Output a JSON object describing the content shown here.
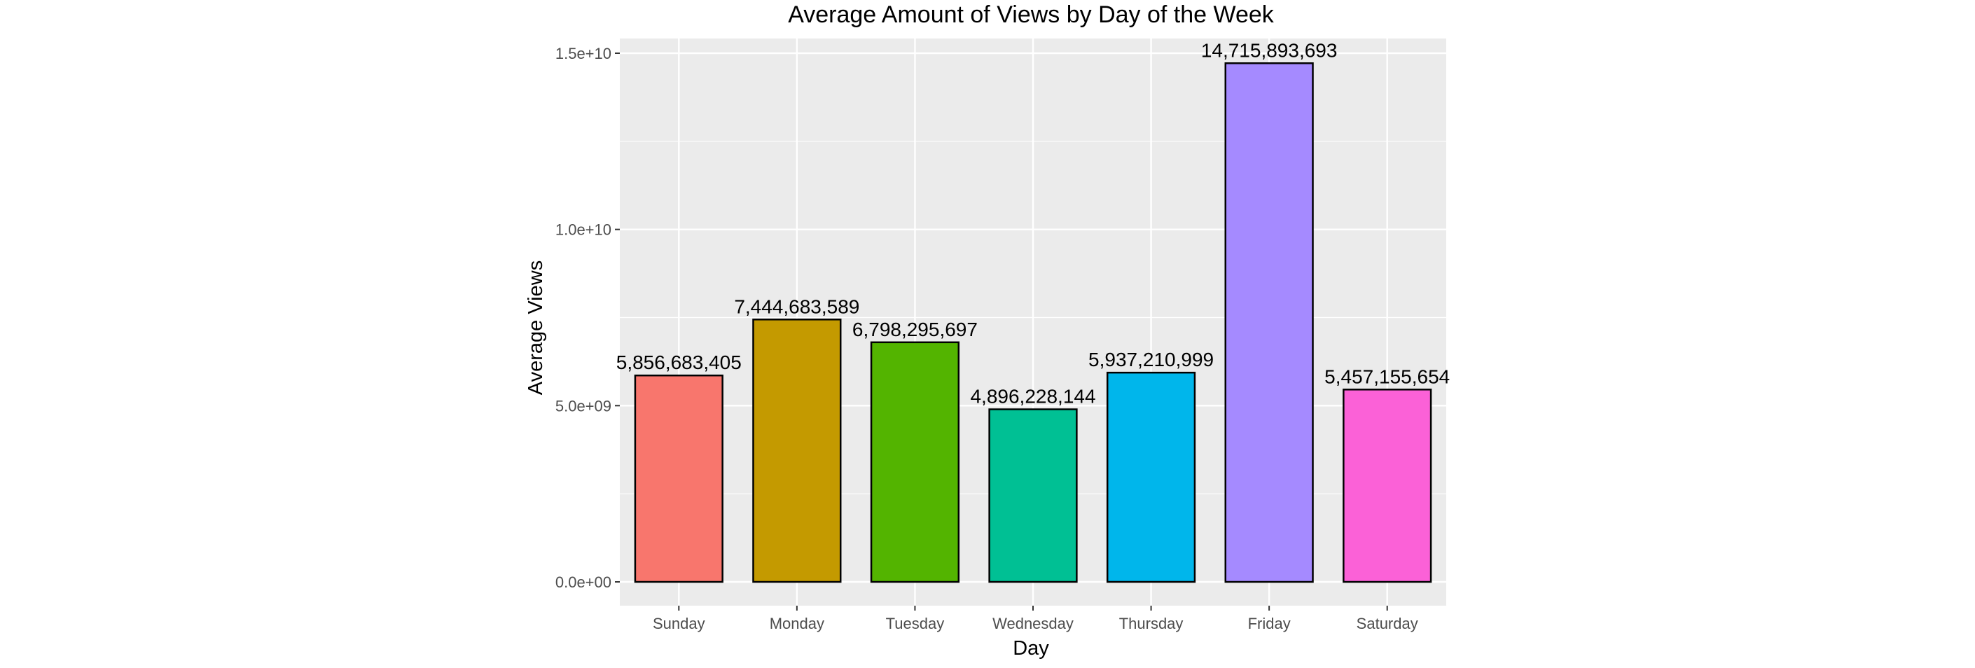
{
  "chart_data": {
    "type": "bar",
    "title": "Average Amount of Views by Day of the Week",
    "xlabel": "Day",
    "ylabel": "Average Views",
    "categories": [
      "Sunday",
      "Monday",
      "Tuesday",
      "Wednesday",
      "Thursday",
      "Friday",
      "Saturday"
    ],
    "values": [
      5856683405,
      7444683589,
      6798295697,
      4896228144,
      5937210999,
      14715893693,
      5457155654
    ],
    "value_labels": [
      "5,856,683,405",
      "7,444,683,589",
      "6,798,295,697",
      "4,896,228,144",
      "5,937,210,999",
      "14,715,893,693",
      "5,457,155,654"
    ],
    "colors": [
      "#F8766D",
      "#C49A00",
      "#53B400",
      "#00C094",
      "#00B6EB",
      "#A58AFF",
      "#FB61D7"
    ],
    "bar_outline_color": "#000000",
    "panel_background": "#EBEBEB",
    "grid": true,
    "legend": "none",
    "ylim": [
      0,
      15000000000
    ],
    "yticks": [
      0,
      5000000000,
      10000000000,
      15000000000
    ],
    "ytick_labels": [
      "0.0e+00",
      "5.0e+09",
      "1.0e+10",
      "1.5e+10"
    ]
  }
}
